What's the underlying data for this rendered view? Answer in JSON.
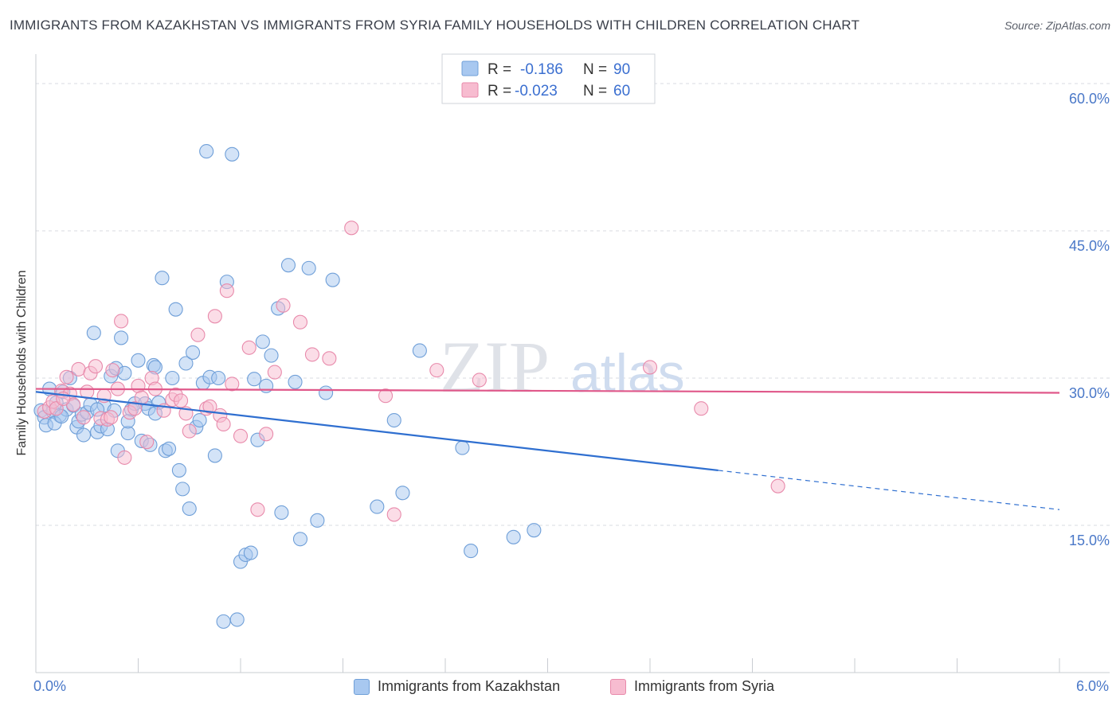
{
  "title": "IMMIGRANTS FROM KAZAKHSTAN VS IMMIGRANTS FROM SYRIA FAMILY HOUSEHOLDS WITH CHILDREN CORRELATION CHART",
  "source": "Source: ZipAtlas.com",
  "watermark": {
    "zip": "ZIP",
    "atlas": "atlas"
  },
  "legend": {
    "r_label": "R =",
    "n_label": "N =",
    "entries": [
      {
        "r": "-0.186",
        "n": "90"
      },
      {
        "r": "-0.023",
        "n": "60"
      }
    ]
  },
  "colors": {
    "kazakhstan_fill": "#a8c8f0",
    "kazakhstan_stroke": "#6f9fd8",
    "kazakhstan_line": "#2f6fd0",
    "syria_fill": "#f7bcd0",
    "syria_stroke": "#e88aab",
    "syria_line": "#e0588a",
    "tick_text": "#4a78c8",
    "grid": "#d8dbe2"
  },
  "chart_data": {
    "type": "scatter",
    "title": "IMMIGRANTS FROM KAZAKHSTAN VS IMMIGRANTS FROM SYRIA FAMILY HOUSEHOLDS WITH CHILDREN CORRELATION CHART",
    "xlabel": "",
    "ylabel": "Family Households with Children",
    "xlim": [
      0,
      6.0
    ],
    "ylim": [
      0,
      63
    ],
    "x_tick_labels": [
      "0.0%",
      "6.0%"
    ],
    "y_ticks": [
      15,
      30,
      45,
      60
    ],
    "y_tick_labels": [
      "15.0%",
      "30.0%",
      "45.0%",
      "60.0%"
    ],
    "grid": true,
    "legend_position": "top-center",
    "series": [
      {
        "name": "Immigrants from Kazakhstan",
        "r": -0.186,
        "n": 90,
        "trend": {
          "x0": 0.0,
          "y0": 28.6,
          "x1": 4.0,
          "y1": 20.6,
          "x_dash_end": 6.0,
          "y_dash_end": 16.6
        },
        "points": [
          [
            0.03,
            26.7
          ],
          [
            0.05,
            26.0
          ],
          [
            0.06,
            25.2
          ],
          [
            0.08,
            28.9
          ],
          [
            0.1,
            26.6
          ],
          [
            0.12,
            27.5
          ],
          [
            0.14,
            26.2
          ],
          [
            0.16,
            28.6
          ],
          [
            0.18,
            26.8
          ],
          [
            0.2,
            30.0
          ],
          [
            0.22,
            27.2
          ],
          [
            0.24,
            25.0
          ],
          [
            0.25,
            25.6
          ],
          [
            0.27,
            26.3
          ],
          [
            0.28,
            24.2
          ],
          [
            0.3,
            26.5
          ],
          [
            0.32,
            27.3
          ],
          [
            0.34,
            34.6
          ],
          [
            0.36,
            24.5
          ],
          [
            0.38,
            25.1
          ],
          [
            0.4,
            27.2
          ],
          [
            0.42,
            24.8
          ],
          [
            0.44,
            30.2
          ],
          [
            0.46,
            26.7
          ],
          [
            0.47,
            31.0
          ],
          [
            0.48,
            22.6
          ],
          [
            0.5,
            34.1
          ],
          [
            0.52,
            30.5
          ],
          [
            0.54,
            24.4
          ],
          [
            0.56,
            26.8
          ],
          [
            0.58,
            27.4
          ],
          [
            0.6,
            31.8
          ],
          [
            0.62,
            23.6
          ],
          [
            0.64,
            27.4
          ],
          [
            0.66,
            26.9
          ],
          [
            0.67,
            23.2
          ],
          [
            0.69,
            31.3
          ],
          [
            0.7,
            31.1
          ],
          [
            0.72,
            27.5
          ],
          [
            0.74,
            40.2
          ],
          [
            0.76,
            22.6
          ],
          [
            0.78,
            22.8
          ],
          [
            0.8,
            30.0
          ],
          [
            0.82,
            37.0
          ],
          [
            0.84,
            20.6
          ],
          [
            0.86,
            18.7
          ],
          [
            0.88,
            31.5
          ],
          [
            0.9,
            16.7
          ],
          [
            0.92,
            32.6
          ],
          [
            0.94,
            25.0
          ],
          [
            0.96,
            25.7
          ],
          [
            0.98,
            29.5
          ],
          [
            1.0,
            53.1
          ],
          [
            1.02,
            30.1
          ],
          [
            1.05,
            22.1
          ],
          [
            1.07,
            30.0
          ],
          [
            1.1,
            5.2
          ],
          [
            1.12,
            39.8
          ],
          [
            1.15,
            52.8
          ],
          [
            1.18,
            5.4
          ],
          [
            1.2,
            11.3
          ],
          [
            1.23,
            12.0
          ],
          [
            1.26,
            12.2
          ],
          [
            1.28,
            29.9
          ],
          [
            1.3,
            23.7
          ],
          [
            1.33,
            33.7
          ],
          [
            1.35,
            29.2
          ],
          [
            1.38,
            32.3
          ],
          [
            1.42,
            37.1
          ],
          [
            1.44,
            16.3
          ],
          [
            1.48,
            41.5
          ],
          [
            1.52,
            29.6
          ],
          [
            1.55,
            13.6
          ],
          [
            1.6,
            41.2
          ],
          [
            1.65,
            15.5
          ],
          [
            1.7,
            28.5
          ],
          [
            1.74,
            40.0
          ],
          [
            2.0,
            16.9
          ],
          [
            2.1,
            25.7
          ],
          [
            2.15,
            18.3
          ],
          [
            2.25,
            32.8
          ],
          [
            2.5,
            22.9
          ],
          [
            2.55,
            12.4
          ],
          [
            2.8,
            13.8
          ],
          [
            2.92,
            14.5
          ],
          [
            0.11,
            25.4
          ],
          [
            0.15,
            26.1
          ],
          [
            0.36,
            26.8
          ],
          [
            0.54,
            25.6
          ],
          [
            0.7,
            26.4
          ]
        ]
      },
      {
        "name": "Immigrants from Syria",
        "r": -0.023,
        "n": 60,
        "trend": {
          "x0": 0.0,
          "y0": 28.9,
          "x1": 6.0,
          "y1": 28.5
        },
        "points": [
          [
            0.05,
            26.6
          ],
          [
            0.08,
            27.0
          ],
          [
            0.1,
            27.6
          ],
          [
            0.12,
            26.9
          ],
          [
            0.15,
            28.7
          ],
          [
            0.18,
            30.1
          ],
          [
            0.2,
            28.4
          ],
          [
            0.22,
            27.3
          ],
          [
            0.25,
            30.9
          ],
          [
            0.28,
            26.0
          ],
          [
            0.3,
            28.6
          ],
          [
            0.32,
            30.5
          ],
          [
            0.35,
            31.2
          ],
          [
            0.38,
            25.9
          ],
          [
            0.4,
            28.2
          ],
          [
            0.42,
            25.8
          ],
          [
            0.45,
            30.8
          ],
          [
            0.48,
            28.9
          ],
          [
            0.5,
            35.8
          ],
          [
            0.52,
            21.9
          ],
          [
            0.55,
            26.5
          ],
          [
            0.58,
            26.9
          ],
          [
            0.6,
            29.2
          ],
          [
            0.62,
            28.0
          ],
          [
            0.65,
            23.5
          ],
          [
            0.68,
            30.0
          ],
          [
            0.7,
            28.9
          ],
          [
            0.75,
            26.7
          ],
          [
            0.8,
            27.8
          ],
          [
            0.82,
            28.3
          ],
          [
            0.85,
            27.7
          ],
          [
            0.88,
            26.4
          ],
          [
            0.9,
            24.6
          ],
          [
            0.95,
            34.4
          ],
          [
            1.0,
            26.9
          ],
          [
            1.02,
            27.1
          ],
          [
            1.05,
            36.3
          ],
          [
            1.08,
            26.2
          ],
          [
            1.1,
            25.3
          ],
          [
            1.12,
            38.9
          ],
          [
            1.15,
            29.4
          ],
          [
            1.2,
            24.1
          ],
          [
            1.25,
            33.1
          ],
          [
            1.3,
            16.6
          ],
          [
            1.35,
            24.3
          ],
          [
            1.4,
            30.6
          ],
          [
            1.45,
            37.4
          ],
          [
            1.55,
            35.7
          ],
          [
            1.62,
            32.4
          ],
          [
            1.72,
            32.0
          ],
          [
            1.85,
            45.3
          ],
          [
            2.05,
            28.2
          ],
          [
            2.1,
            16.1
          ],
          [
            2.35,
            30.8
          ],
          [
            2.6,
            29.8
          ],
          [
            3.6,
            31.1
          ],
          [
            3.9,
            26.9
          ],
          [
            4.35,
            19.0
          ],
          [
            0.16,
            27.9
          ],
          [
            0.44,
            26.0
          ]
        ]
      }
    ]
  }
}
